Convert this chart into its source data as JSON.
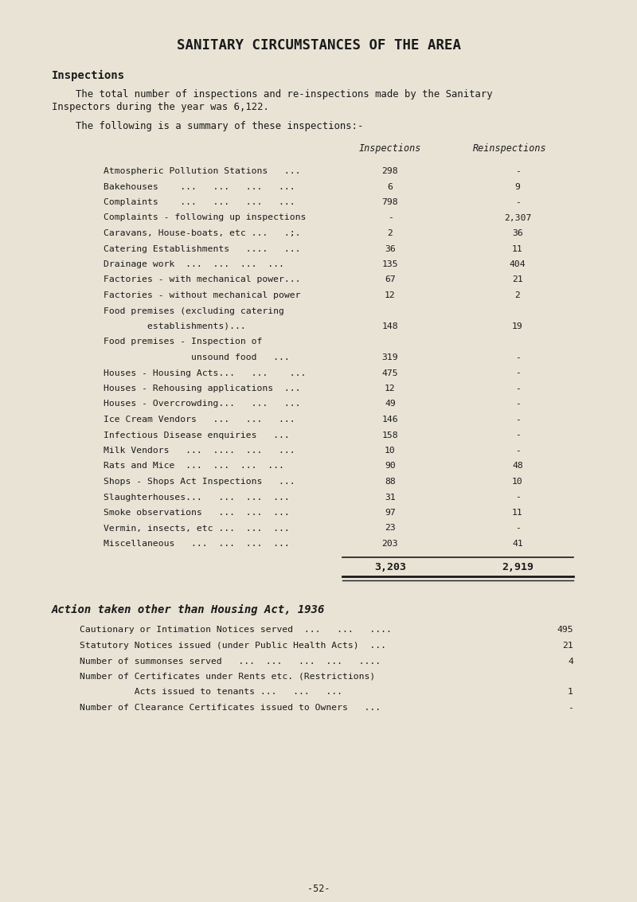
{
  "title": "SANITARY CIRCUMSTANCES OF THE AREA",
  "bg_color": "#e8e3d5",
  "text_color": "#1a1a1a",
  "section1_heading": "Inspections",
  "para1_line1": "The total number of inspections and re-inspections made by the Sanitary",
  "para1_line2": "Inspectors during the year was 6,122.",
  "para2": "The following is a summary of these inspections:-",
  "col_header1": "Inspections",
  "col_header2": "Reinspections",
  "table_rows": [
    [
      "Atmospheric Pollution Stations   ...",
      "298",
      "-"
    ],
    [
      "Bakehouses    ...   ...   ...   ...",
      "6",
      "9"
    ],
    [
      "Complaints    ...   ...   ...   ...",
      "798",
      "-"
    ],
    [
      "Complaints - following up inspections",
      "-",
      "2,307"
    ],
    [
      "Caravans, House-boats, etc ...   .;.",
      "2",
      "36"
    ],
    [
      "Catering Establishments   ....   ...",
      "36",
      "11"
    ],
    [
      "Drainage work  ...  ...  ...  ...",
      "135",
      "404"
    ],
    [
      "Factories - with mechanical power...",
      "67",
      "21"
    ],
    [
      "Factories - without mechanical power",
      "12",
      "2"
    ],
    [
      "Food premises (excluding catering",
      "",
      ""
    ],
    [
      "        establishments)...",
      "148",
      "19"
    ],
    [
      "Food premises - Inspection of",
      "",
      ""
    ],
    [
      "                unsound food   ...",
      "319",
      "-"
    ],
    [
      "Houses - Housing Acts...   ...    ...",
      "475",
      "-"
    ],
    [
      "Houses - Rehousing applications  ...",
      "12",
      "-"
    ],
    [
      "Houses - Overcrowding...   ...   ...",
      "49",
      "-"
    ],
    [
      "Ice Cream Vendors   ...   ...   ...",
      "146",
      "-"
    ],
    [
      "Infectious Disease enquiries   ...",
      "158",
      "-"
    ],
    [
      "Milk Vendors   ...  ....  ...   ...",
      "10",
      "-"
    ],
    [
      "Rats and Mice  ...  ...  ...  ...",
      "90",
      "48"
    ],
    [
      "Shops - Shops Act Inspections   ...",
      "88",
      "10"
    ],
    [
      "Slaughterhouses...   ...  ...  ...",
      "31",
      "-"
    ],
    [
      "Smoke observations   ...  ...  ...",
      "97",
      "11"
    ],
    [
      "Vermin, insects, etc ...  ...  ...",
      "23",
      "-"
    ],
    [
      "Miscellaneous   ...  ...  ...  ...",
      "203",
      "41"
    ]
  ],
  "total1": "3,203",
  "total2": "2,919",
  "section2_heading": "Action taken other than Housing Act, 1936",
  "action_rows": [
    [
      "Cautionary or Intimation Notices served  ...   ...   ....",
      "495"
    ],
    [
      "Statutory Notices issued (under Public Health Acts)  ...",
      "21"
    ],
    [
      "Number of summonses served   ...  ...   ...  ...   ....",
      "4"
    ],
    [
      "Number of Certificates under Rents etc. (Restrictions)",
      ""
    ],
    [
      "          Acts issued to tenants ...   ...   ...",
      "1"
    ],
    [
      "Number of Clearance Certificates issued to Owners   ...",
      "-"
    ]
  ],
  "page_number": "-52-"
}
